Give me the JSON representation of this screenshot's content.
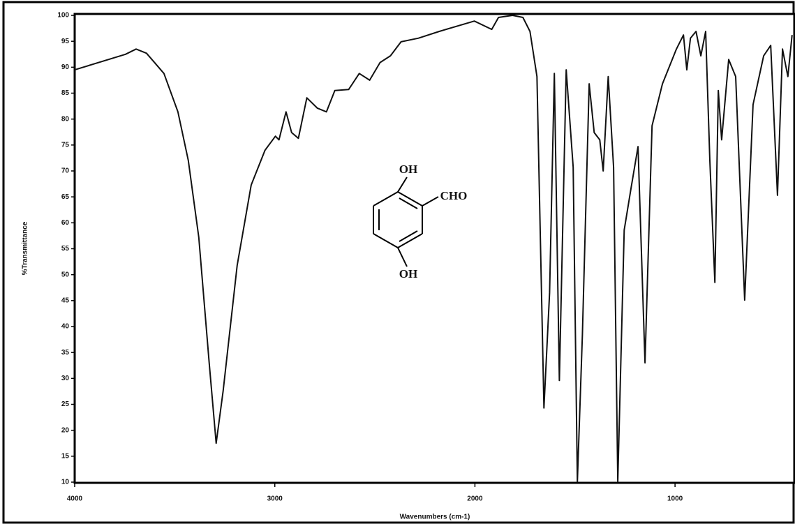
{
  "chart_data": {
    "type": "line",
    "xlabel": "Wavenumbers (cm-1)",
    "ylabel": "%Transmittance",
    "xlim": [
      4000,
      404
    ],
    "ylim": [
      10,
      100
    ],
    "xticks": [
      4000,
      3000,
      2000,
      1000
    ],
    "yticks": [
      100,
      95,
      90,
      85,
      80,
      75,
      70,
      65,
      60,
      55,
      50,
      45,
      40,
      35,
      30,
      25,
      20,
      15,
      10
    ],
    "annotations": [
      "OH",
      "CHO",
      "OH"
    ],
    "series": [
      {
        "color": "#111111",
        "x": [
          4000,
          3746,
          3693,
          3641,
          3554,
          3484,
          3432,
          3380,
          3328,
          3293,
          3258,
          3188,
          3118,
          3049,
          2997,
          2979,
          2944,
          2916,
          2882,
          2840,
          2787,
          2742,
          2700,
          2631,
          2578,
          2526,
          2474,
          2422,
          2369,
          2282,
          2178,
          2003,
          1916,
          1882,
          1812,
          1760,
          1725,
          1690,
          1655,
          1627,
          1603,
          1578,
          1544,
          1509,
          1488,
          1463,
          1429,
          1404,
          1376,
          1359,
          1334,
          1307,
          1286,
          1254,
          1220,
          1185,
          1150,
          1115,
          1063,
          993,
          958,
          941,
          923,
          895,
          871,
          847,
          826,
          801,
          784,
          767,
          732,
          697,
          652,
          610,
          557,
          522,
          488,
          463,
          436,
          415
        ],
        "values": [
          89.5,
          92.5,
          93.5,
          92.7,
          88.8,
          81.4,
          72,
          57.2,
          33,
          17.5,
          27.6,
          51.8,
          67.3,
          74,
          76.7,
          76,
          81.4,
          77.4,
          76.3,
          84.1,
          82.1,
          81.4,
          85.5,
          85.7,
          88.8,
          87.5,
          90.9,
          92.2,
          94.9,
          95.6,
          96.9,
          98.9,
          97.3,
          99.6,
          100,
          99.6,
          96.9,
          88.2,
          24.3,
          46.5,
          88.8,
          29.6,
          89.5,
          70.7,
          10.1,
          38.4,
          86.8,
          77.4,
          76,
          70,
          88.2,
          70.7,
          10.1,
          58.6,
          66.6,
          74.7,
          33,
          78.7,
          86.8,
          93.5,
          96.2,
          89.5,
          95.6,
          96.9,
          92.2,
          96.9,
          72,
          48.5,
          85.5,
          76,
          91.5,
          88.2,
          45.1,
          82.8,
          92.2,
          94.2,
          65.3,
          93.5,
          88.2,
          96.2
        ]
      }
    ]
  }
}
